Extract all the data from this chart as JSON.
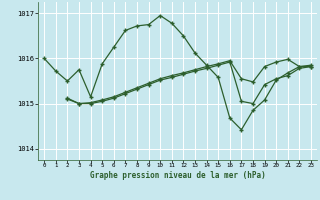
{
  "background_color": "#c8e8ee",
  "line_color": "#2d5f2d",
  "grid_color": "#b0d8de",
  "xlabel": "Graphe pression niveau de la mer (hPa)",
  "ylim": [
    1013.75,
    1017.25
  ],
  "xlim": [
    -0.5,
    23.5
  ],
  "yticks": [
    1014,
    1015,
    1016,
    1017
  ],
  "xticks": [
    0,
    1,
    2,
    3,
    4,
    5,
    6,
    7,
    8,
    9,
    10,
    11,
    12,
    13,
    14,
    15,
    16,
    17,
    18,
    19,
    20,
    21,
    22,
    23
  ],
  "series1_x": [
    0,
    1,
    2,
    3,
    4,
    5,
    6,
    7,
    8,
    9,
    10,
    11,
    12,
    13,
    14,
    15,
    16,
    17,
    18,
    19,
    20,
    21,
    22,
    23
  ],
  "series1_y": [
    1016.0,
    1015.72,
    1015.5,
    1015.75,
    1015.15,
    1015.88,
    1016.25,
    1016.62,
    1016.72,
    1016.75,
    1016.95,
    1016.78,
    1016.5,
    1016.12,
    1015.85,
    1015.58,
    1014.68,
    1014.42,
    1014.85,
    1015.08,
    1015.52,
    1015.68,
    1015.82,
    1015.82
  ],
  "series2_x": [
    2,
    3,
    4,
    5,
    6,
    7,
    8,
    9,
    10,
    11,
    12,
    13,
    14,
    15,
    16,
    17,
    18,
    19,
    20,
    21,
    22,
    23
  ],
  "series2_y": [
    1015.12,
    1015.0,
    1015.0,
    1015.05,
    1015.12,
    1015.22,
    1015.32,
    1015.42,
    1015.52,
    1015.58,
    1015.65,
    1015.72,
    1015.78,
    1015.85,
    1015.92,
    1015.05,
    1015.0,
    1015.42,
    1015.55,
    1015.62,
    1015.78,
    1015.82
  ],
  "series3_x": [
    2,
    3,
    4,
    5,
    6,
    7,
    8,
    9,
    10,
    11,
    12,
    13,
    14,
    15,
    16,
    17,
    18,
    19,
    20,
    21,
    22,
    23
  ],
  "series3_y": [
    1015.1,
    1015.0,
    1015.02,
    1015.08,
    1015.15,
    1015.25,
    1015.35,
    1015.45,
    1015.55,
    1015.62,
    1015.68,
    1015.75,
    1015.82,
    1015.88,
    1015.95,
    1015.55,
    1015.48,
    1015.82,
    1015.92,
    1015.98,
    1015.82,
    1015.85
  ]
}
